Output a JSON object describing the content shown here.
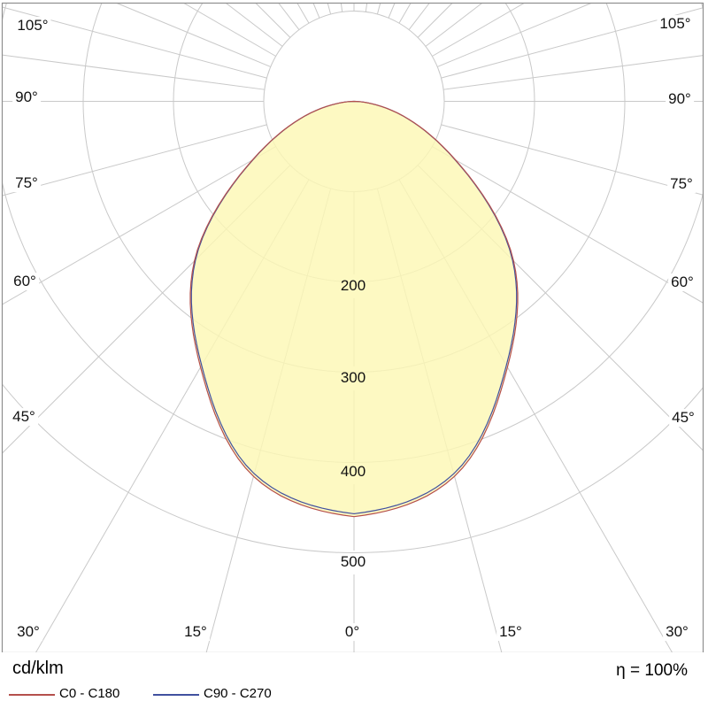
{
  "chart_data": {
    "type": "line",
    "variant": "polar-photometric-luminous-intensity-distribution",
    "units": "cd/klm",
    "gamma_angles_deg": [
      0,
      15,
      30,
      45,
      60,
      75,
      90
    ],
    "series": [
      {
        "name": "C0 - C180",
        "color": "#b5504c",
        "values": [
          460,
          430,
          340,
          250,
          130,
          50,
          0
        ]
      },
      {
        "name": "C90 - C270",
        "color": "#41519f",
        "values": [
          460,
          430,
          340,
          250,
          130,
          50,
          0
        ]
      }
    ],
    "radial_axis": {
      "min": 0,
      "max": 500,
      "step": 100,
      "tick_labels": [
        "200",
        "300",
        "400",
        "500"
      ]
    },
    "angular_tick_labels": {
      "left": [
        "105°",
        "90°",
        "75°",
        "60°",
        "45°"
      ],
      "right": [
        "105°",
        "90°",
        "75°",
        "60°",
        "45°"
      ],
      "bottom": [
        "30°",
        "15°",
        "0°",
        "15°",
        "30°"
      ]
    },
    "fill_color": "#fcf8b4",
    "grid": true,
    "legend_position": "bottom-left"
  },
  "footer": {
    "units_label": "cd/klm",
    "legend": [
      {
        "label": "C0 - C180",
        "color": "#b5504c"
      },
      {
        "label": "C90 - C270",
        "color": "#41519f"
      }
    ],
    "efficiency_label": "η = 100%"
  }
}
